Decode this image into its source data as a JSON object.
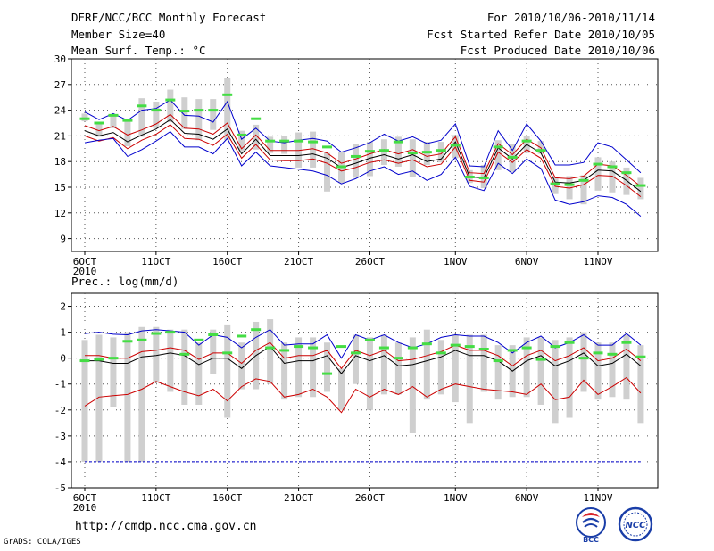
{
  "header": {
    "title": "DERF/NCC/BCC Monthly Forecast",
    "member_size": "Member Size=40",
    "variable": "Mean Surf. Temp.: °C",
    "period": "For 2010/10/06-2010/11/14",
    "started": "Fcst Started Refer Date 2010/10/05",
    "produced": "Fcst Produced Date 2010/10/06"
  },
  "footer": {
    "url": "http://cmdp.ncc.cma.gov.cn",
    "credit": "GrADS: COLA/IGES",
    "logo_left": "BCC",
    "logo_right": "NCC"
  },
  "colors": {
    "range_bar": "#cfcfcf",
    "median": "#44dd44",
    "upper": "#0000cc",
    "mean": "#000000",
    "lower": "#cc0000",
    "grid": "#555555"
  },
  "chart_data": [
    {
      "type": "line",
      "title": "Mean Surf. Temp.: °C",
      "days": 40,
      "x_ticks": [
        {
          "day": 0,
          "label": "6OCT",
          "sub": "2010"
        },
        {
          "day": 5,
          "label": "11OCT"
        },
        {
          "day": 10,
          "label": "16OCT"
        },
        {
          "day": 15,
          "label": "21OCT"
        },
        {
          "day": 20,
          "label": "26OCT"
        },
        {
          "day": 26,
          "label": "1NOV"
        },
        {
          "day": 31,
          "label": "6NOV"
        },
        {
          "day": 36,
          "label": "11NOV"
        }
      ],
      "ylim": [
        7.5,
        30
      ],
      "y_ticks": [
        9,
        12,
        15,
        18,
        21,
        24,
        27,
        30
      ],
      "series": [
        {
          "name": "ensemble max",
          "color": "#0000cc",
          "values": [
            23.8,
            22.9,
            23.6,
            22.8,
            24.0,
            24.2,
            25.2,
            23.4,
            23.3,
            22.6,
            25.0,
            20.6,
            21.9,
            20.4,
            20.2,
            20.5,
            20.7,
            20.4,
            19.1,
            19.6,
            20.2,
            21.2,
            20.4,
            20.9,
            20.1,
            20.5,
            22.4,
            17.5,
            17.4,
            21.6,
            19.3,
            22.4,
            20.4,
            17.6,
            17.6,
            17.9,
            20.2,
            19.7,
            18.2,
            16.7
          ]
        },
        {
          "name": "ensemble mean +1sd",
          "color": "#cc0000",
          "values": [
            22.2,
            21.6,
            22.1,
            21.1,
            21.7,
            22.4,
            23.5,
            21.9,
            21.8,
            21.2,
            22.5,
            19.5,
            21.1,
            19.3,
            19.3,
            19.3,
            19.5,
            19.0,
            17.8,
            18.3,
            18.9,
            19.4,
            18.9,
            19.4,
            18.6,
            18.9,
            20.9,
            16.7,
            16.6,
            20.1,
            18.8,
            20.6,
            19.6,
            16.1,
            16.0,
            16.3,
            17.7,
            17.5,
            16.4,
            15.1
          ]
        },
        {
          "name": "ensemble mean",
          "color": "#000000",
          "values": [
            21.6,
            21.0,
            21.4,
            20.3,
            21.1,
            21.8,
            22.9,
            21.3,
            21.2,
            20.6,
            21.8,
            18.9,
            20.6,
            18.7,
            18.7,
            18.7,
            18.9,
            18.4,
            17.3,
            17.8,
            18.4,
            18.8,
            18.3,
            18.8,
            18.0,
            18.3,
            20.3,
            16.2,
            16.1,
            19.6,
            18.3,
            20.0,
            19.0,
            15.6,
            15.5,
            15.8,
            17.0,
            16.9,
            15.8,
            14.5
          ]
        },
        {
          "name": "ensemble mean -1sd",
          "color": "#cc0000",
          "values": [
            21.0,
            20.4,
            20.8,
            19.5,
            20.5,
            21.2,
            22.3,
            20.7,
            20.6,
            19.9,
            21.2,
            18.4,
            20.0,
            18.2,
            18.1,
            18.1,
            18.3,
            17.8,
            16.9,
            17.3,
            17.9,
            18.2,
            17.8,
            18.2,
            17.4,
            17.7,
            19.7,
            15.8,
            15.6,
            19.1,
            17.9,
            19.4,
            18.4,
            15.1,
            14.9,
            15.3,
            16.4,
            16.3,
            15.2,
            13.9
          ]
        },
        {
          "name": "ensemble min",
          "color": "#0000cc",
          "values": [
            20.2,
            20.5,
            20.7,
            18.6,
            19.4,
            20.4,
            21.5,
            19.7,
            19.7,
            18.9,
            20.7,
            17.5,
            19.1,
            17.5,
            17.3,
            17.1,
            16.9,
            16.4,
            15.4,
            16.0,
            16.9,
            17.4,
            16.5,
            16.9,
            15.8,
            16.5,
            18.5,
            15.1,
            14.6,
            17.8,
            16.6,
            18.3,
            17.2,
            13.5,
            13.0,
            13.3,
            14.0,
            13.8,
            13.0,
            11.6
          ]
        }
      ],
      "median": [
        23.0,
        22.5,
        23.4,
        22.8,
        24.5,
        24.0,
        25.2,
        23.9,
        24.0,
        24.0,
        25.8,
        21.1,
        23.0,
        20.4,
        20.4,
        20.4,
        20.3,
        19.7,
        17.4,
        18.6,
        19.2,
        19.3,
        20.3,
        19.0,
        19.1,
        19.3,
        19.9,
        16.2,
        16.1,
        19.7,
        18.5,
        20.4,
        19.3,
        15.4,
        15.3,
        15.8,
        17.7,
        17.4,
        16.7,
        15.2
      ],
      "bars": [
        [
          22.7,
          23.6
        ],
        [
          20.9,
          22.5
        ],
        [
          21.9,
          23.5
        ],
        [
          19.8,
          23.0
        ],
        [
          20.9,
          25.4
        ],
        [
          21.9,
          25.0
        ],
        [
          22.6,
          26.4
        ],
        [
          21.8,
          25.5
        ],
        [
          20.5,
          25.3
        ],
        [
          21.7,
          25.3
        ],
        [
          20.5,
          27.8
        ],
        [
          19.2,
          21.6
        ],
        [
          19.4,
          22.3
        ],
        [
          19.0,
          20.9
        ],
        [
          18.9,
          21.0
        ],
        [
          17.3,
          21.4
        ],
        [
          17.3,
          21.5
        ],
        [
          14.5,
          19.0
        ],
        [
          15.5,
          19.1
        ],
        [
          16.1,
          20.0
        ],
        [
          16.3,
          20.3
        ],
        [
          17.6,
          20.6
        ],
        [
          17.4,
          20.9
        ],
        [
          16.2,
          20.6
        ],
        [
          17.6,
          20.3
        ],
        [
          17.9,
          20.3
        ],
        [
          18.4,
          21.1
        ],
        [
          15.5,
          17.0
        ],
        [
          14.9,
          17.6
        ],
        [
          17.0,
          20.5
        ],
        [
          16.8,
          20.0
        ],
        [
          19.0,
          21.0
        ],
        [
          18.9,
          20.4
        ],
        [
          14.2,
          16.2
        ],
        [
          13.6,
          16.3
        ],
        [
          13.0,
          16.4
        ],
        [
          14.6,
          18.5
        ],
        [
          14.4,
          18.0
        ],
        [
          14.1,
          17.3
        ],
        [
          13.6,
          16.1
        ]
      ]
    },
    {
      "type": "line",
      "title": "Prec.: log(mm/d)",
      "days": 40,
      "x_ticks": [
        {
          "day": 0,
          "label": "6OCT",
          "sub": "2010"
        },
        {
          "day": 5,
          "label": "11OCT"
        },
        {
          "day": 10,
          "label": "16OCT"
        },
        {
          "day": 15,
          "label": "21OCT"
        },
        {
          "day": 20,
          "label": "26OCT"
        },
        {
          "day": 26,
          "label": "1NOV"
        },
        {
          "day": 31,
          "label": "6NOV"
        },
        {
          "day": 36,
          "label": "11NOV"
        }
      ],
      "ylim": [
        -5,
        2.5
      ],
      "y_ticks": [
        -5,
        -4,
        -3,
        -2,
        -1,
        0,
        1,
        2
      ],
      "series": [
        {
          "name": "ensemble max",
          "color": "#0000cc",
          "values": [
            0.95,
            1.0,
            0.92,
            0.9,
            1.05,
            1.1,
            1.05,
            1.0,
            0.5,
            0.9,
            0.8,
            0.4,
            0.8,
            1.1,
            0.5,
            0.55,
            0.55,
            0.9,
            0.0,
            0.9,
            0.7,
            0.9,
            0.6,
            0.4,
            0.55,
            0.8,
            0.9,
            0.85,
            0.85,
            0.6,
            0.2,
            0.6,
            0.85,
            0.4,
            0.6,
            0.9,
            0.5,
            0.5,
            0.95,
            0.5
          ]
        },
        {
          "name": "ensemble mean +1sd",
          "color": "#cc0000",
          "values": [
            0.1,
            0.1,
            0.0,
            0.0,
            0.25,
            0.3,
            0.4,
            0.3,
            -0.05,
            0.2,
            0.2,
            -0.2,
            0.3,
            0.6,
            0.0,
            0.1,
            0.1,
            0.3,
            -0.4,
            0.3,
            0.1,
            0.3,
            -0.1,
            -0.05,
            0.1,
            0.25,
            0.5,
            0.3,
            0.3,
            0.1,
            -0.3,
            0.1,
            0.3,
            -0.1,
            0.1,
            0.4,
            -0.1,
            0.0,
            0.35,
            -0.1
          ]
        },
        {
          "name": "ensemble mean",
          "color": "#000000",
          "values": [
            -0.1,
            -0.1,
            -0.2,
            -0.2,
            0.05,
            0.1,
            0.2,
            0.1,
            -0.25,
            0.0,
            0.0,
            -0.4,
            0.1,
            0.45,
            -0.2,
            -0.1,
            -0.1,
            0.1,
            -0.6,
            0.1,
            -0.1,
            0.1,
            -0.3,
            -0.25,
            -0.1,
            0.05,
            0.3,
            0.1,
            0.1,
            -0.1,
            -0.5,
            -0.1,
            0.1,
            -0.3,
            -0.1,
            0.2,
            -0.3,
            -0.2,
            0.15,
            -0.3
          ]
        },
        {
          "name": "ensemble mean -1sd",
          "color": "#cc0000",
          "values": [
            -1.85,
            -1.5,
            -1.45,
            -1.4,
            -1.2,
            -0.9,
            -1.1,
            -1.3,
            -1.45,
            -1.2,
            -1.65,
            -1.1,
            -0.8,
            -0.9,
            -1.5,
            -1.4,
            -1.2,
            -1.5,
            -2.1,
            -1.2,
            -1.5,
            -1.2,
            -1.4,
            -1.1,
            -1.5,
            -1.2,
            -1.0,
            -1.1,
            -1.2,
            -1.25,
            -1.3,
            -1.4,
            -1.0,
            -1.6,
            -1.5,
            -0.85,
            -1.4,
            -1.1,
            -0.75,
            -1.35
          ]
        },
        {
          "name": "lower limit",
          "color": "#0000cc",
          "values": [
            -4.0,
            -4.0,
            -4.0,
            -4.0,
            -4.0,
            -4.0,
            -4.0,
            -4.0,
            -4.0,
            -4.0,
            -4.0,
            -4.0,
            -4.0,
            -4.0,
            -4.0,
            -4.0,
            -4.0,
            -4.0,
            -4.0,
            -4.0,
            -4.0,
            -4.0,
            -4.0,
            -4.0,
            -4.0,
            -4.0,
            -4.0,
            -4.0,
            -4.0,
            -4.0,
            -4.0,
            -4.0,
            -4.0,
            -4.0,
            -4.0,
            -4.0,
            -4.0,
            -4.0,
            -4.0,
            -4.0
          ]
        }
      ],
      "median": [
        -0.1,
        -0.05,
        0.0,
        0.65,
        0.7,
        0.95,
        1.0,
        0.15,
        0.7,
        0.9,
        0.2,
        0.85,
        1.1,
        0.4,
        0.3,
        0.45,
        0.4,
        -0.6,
        0.45,
        0.2,
        0.7,
        0.4,
        0.0,
        0.4,
        0.55,
        0.2,
        0.5,
        0.45,
        0.35,
        -0.1,
        0.3,
        0.4,
        -0.05,
        0.45,
        0.6,
        0.0,
        0.2,
        0.15,
        0.6,
        0.05
      ],
      "bars": [
        [
          -4.0,
          0.7
        ],
        [
          -4.0,
          0.9
        ],
        [
          -1.9,
          0.8
        ],
        [
          -4.0,
          1.0
        ],
        [
          -4.0,
          1.2
        ],
        [
          -0.9,
          1.2
        ],
        [
          -1.3,
          1.1
        ],
        [
          -1.8,
          1.1
        ],
        [
          -1.8,
          0.6
        ],
        [
          -0.6,
          1.1
        ],
        [
          -2.3,
          1.3
        ],
        [
          -1.2,
          0.6
        ],
        [
          -1.2,
          1.4
        ],
        [
          -1.0,
          1.5
        ],
        [
          -1.6,
          0.6
        ],
        [
          -1.5,
          0.8
        ],
        [
          -1.5,
          0.8
        ],
        [
          -1.3,
          0.6
        ],
        [
          -2.0,
          -0.4
        ],
        [
          -1.0,
          0.9
        ],
        [
          -2.0,
          0.8
        ],
        [
          -1.4,
          0.9
        ],
        [
          -1.4,
          0.6
        ],
        [
          -2.9,
          0.8
        ],
        [
          -1.6,
          1.1
        ],
        [
          -1.4,
          0.7
        ],
        [
          -1.7,
          0.9
        ],
        [
          -2.5,
          0.9
        ],
        [
          -1.3,
          0.9
        ],
        [
          -1.6,
          0.5
        ],
        [
          -1.5,
          0.5
        ],
        [
          -1.5,
          0.8
        ],
        [
          -1.8,
          0.8
        ],
        [
          -2.5,
          0.7
        ],
        [
          -2.3,
          0.8
        ],
        [
          -1.3,
          1.0
        ],
        [
          -1.6,
          0.6
        ],
        [
          -1.5,
          0.6
        ],
        [
          -1.6,
          0.9
        ],
        [
          -2.5,
          0.5
        ]
      ]
    }
  ]
}
